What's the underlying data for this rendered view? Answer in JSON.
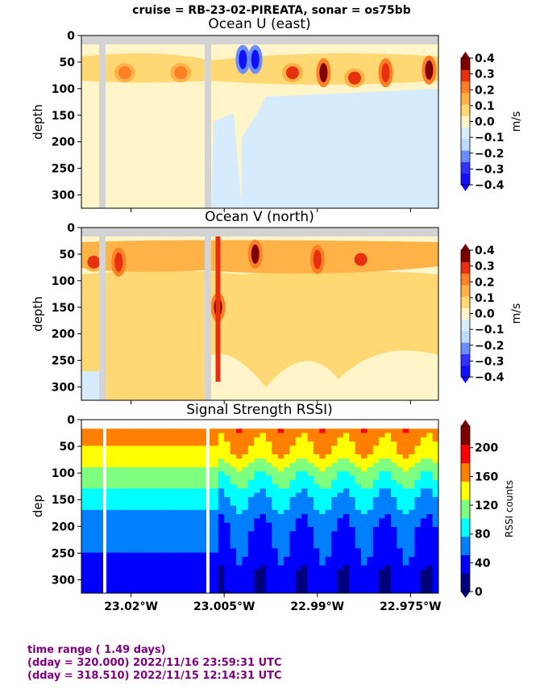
{
  "suptitle": "cruise = RB-23-02-PIREATA,  sonar = os75bb",
  "footer": {
    "line1": "time range ( 1.49 days)",
    "line2": "(dday = 320.000) 2022/11/16 23:59:31 UTC",
    "line3": "(dday = 318.510) 2022/11/15 12:14:31 UTC"
  },
  "colors": {
    "diverging": [
      "#1010ff",
      "#3333ff",
      "#6a8dff",
      "#bcd9ff",
      "#d6ebfb",
      "#fff5c8",
      "#ffd873",
      "#ffb347",
      "#ff7f24",
      "#e63010",
      "#800000"
    ],
    "jet": [
      "#00007f",
      "#0000ff",
      "#007fff",
      "#00ffff",
      "#7fff7f",
      "#ffff00",
      "#ff7f00",
      "#ff0000",
      "#7f0000"
    ],
    "gap": "#d3d3d3"
  },
  "chart_data": [
    {
      "type": "heatmap",
      "title": "Ocean U (east)",
      "ylabel": "depth",
      "xlabel": "",
      "x_ticks": [
        "23.02°W",
        "23.005°W",
        "22.99°W",
        "22.975°W"
      ],
      "x_tick_values": [
        -23.02,
        -23.005,
        -22.99,
        -22.975
      ],
      "x_range": [
        -23.028,
        -22.9705
      ],
      "y_ticks": [
        "0",
        "50",
        "100",
        "150",
        "200",
        "250",
        "300"
      ],
      "ylim": [
        325,
        0
      ],
      "colorbar": {
        "label": "m/s",
        "ticks": [
          "0.4",
          "0.3",
          "0.2",
          "0.1",
          "0.0",
          "−0.1",
          "−0.2",
          "−0.3",
          "−0.4"
        ],
        "levels": [
          -0.4,
          -0.3,
          -0.2,
          -0.1,
          0.0,
          0.1,
          0.2,
          0.3,
          0.4
        ]
      },
      "gap_lon": [
        -23.025,
        -23.005
      ],
      "surface_band_depth": 17,
      "features": [
        {
          "lon": -23.021,
          "depth": 70,
          "value": 0.2
        },
        {
          "lon": -23.012,
          "depth": 70,
          "value": 0.25
        },
        {
          "lon": -23.002,
          "depth": 45,
          "value": -0.4
        },
        {
          "lon": -23.0,
          "depth": 45,
          "value": -0.4
        },
        {
          "lon": -22.994,
          "depth": 70,
          "value": 0.3
        },
        {
          "lon": -22.989,
          "depth": 70,
          "value": 0.4
        },
        {
          "lon": -22.984,
          "depth": 80,
          "value": 0.3
        },
        {
          "lon": -22.979,
          "depth": 70,
          "value": 0.35
        },
        {
          "lon": -22.972,
          "depth": 65,
          "value": 0.4
        }
      ]
    },
    {
      "type": "heatmap",
      "title": "Ocean V (north)",
      "ylabel": "depth",
      "xlabel": "",
      "x_ticks": [
        "23.02°W",
        "23.005°W",
        "22.99°W",
        "22.975°W"
      ],
      "x_tick_values": [
        -23.02,
        -23.005,
        -22.99,
        -22.975
      ],
      "x_range": [
        -23.028,
        -22.9705
      ],
      "y_ticks": [
        "0",
        "50",
        "100",
        "150",
        "200",
        "250",
        "300"
      ],
      "ylim": [
        325,
        0
      ],
      "colorbar": {
        "label": "m/s",
        "ticks": [
          "0.4",
          "0.3",
          "0.2",
          "0.1",
          "0.0",
          "−0.1",
          "−0.2",
          "−0.3",
          "−0.4"
        ],
        "levels": [
          -0.4,
          -0.3,
          -0.2,
          -0.1,
          0.0,
          0.1,
          0.2,
          0.3,
          0.4
        ]
      },
      "gap_lon": [
        -23.025,
        -23.005
      ],
      "surface_band_depth": 17,
      "features": [
        {
          "lon": -23.026,
          "depth": 65,
          "value": 0.3
        },
        {
          "lon": -23.022,
          "depth": 65,
          "value": 0.35
        },
        {
          "lon": -23.006,
          "depth": 150,
          "value": 0.4
        },
        {
          "lon": -23.0,
          "depth": 50,
          "value": 0.4
        },
        {
          "lon": -22.99,
          "depth": 60,
          "value": 0.35
        },
        {
          "lon": -22.983,
          "depth": 60,
          "value": 0.3
        }
      ]
    },
    {
      "type": "heatmap",
      "title": "Signal Strength RSSI)",
      "ylabel": "dep",
      "xlabel": "",
      "x_ticks": [
        "23.02°W",
        "23.005°W",
        "22.99°W",
        "22.975°W"
      ],
      "x_tick_values": [
        -23.02,
        -23.005,
        -22.99,
        -22.975
      ],
      "x_range": [
        -23.028,
        -22.9705
      ],
      "y_ticks": [
        "0",
        "50",
        "100",
        "150",
        "200",
        "250",
        "300"
      ],
      "ylim": [
        325,
        0
      ],
      "colorbar": {
        "label": "RSSI counts",
        "ticks": [
          "200",
          "160",
          "120",
          "80",
          "40",
          "0"
        ],
        "levels": [
          0,
          40,
          80,
          120,
          160,
          200,
          230
        ]
      },
      "gap_lon": [
        -23.02,
        -23.004
      ],
      "surface_band_depth": 17,
      "profile": [
        {
          "depth": 20,
          "value": 175
        },
        {
          "depth": 60,
          "value": 150
        },
        {
          "depth": 100,
          "value": 120
        },
        {
          "depth": 140,
          "value": 85
        },
        {
          "depth": 200,
          "value": 55
        },
        {
          "depth": 260,
          "value": 40
        },
        {
          "depth": 320,
          "value": 30
        }
      ]
    }
  ]
}
